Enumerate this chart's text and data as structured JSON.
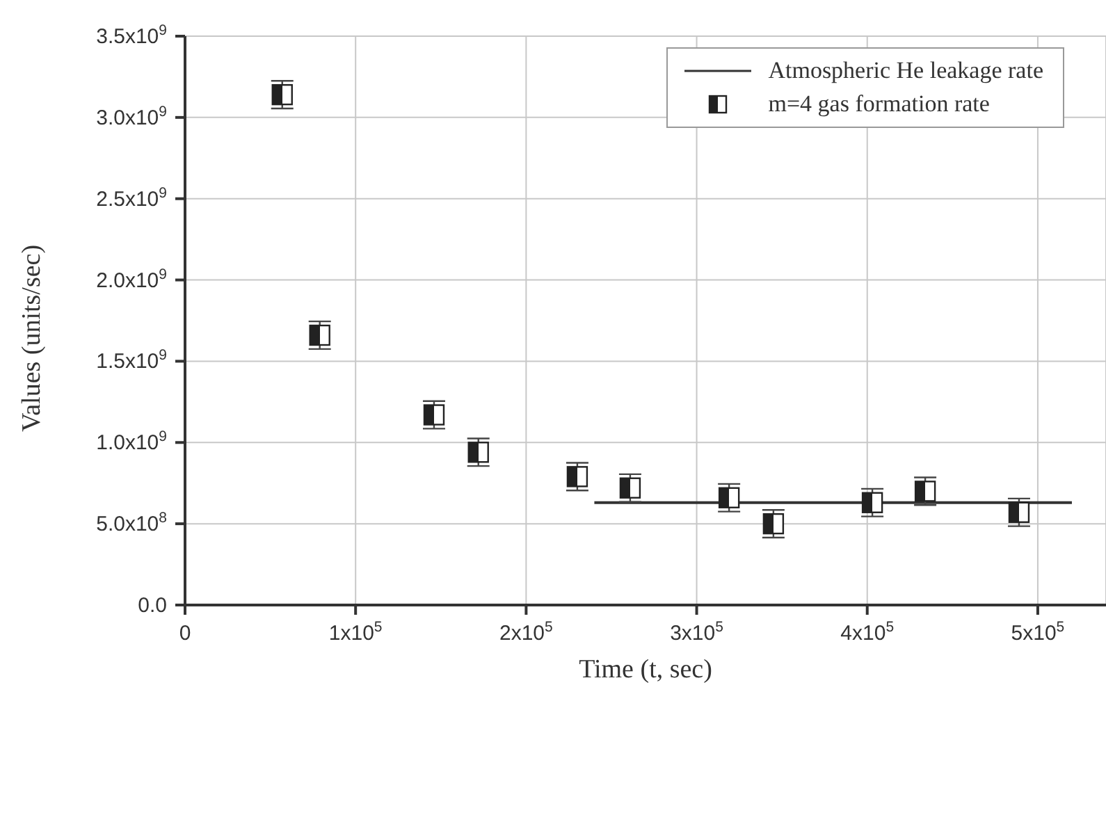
{
  "chart_data": {
    "type": "scatter",
    "xlabel": "Time (t, sec)",
    "ylabel": "Values (units/sec)",
    "xlim": [
      0,
      540000
    ],
    "ylim": [
      0,
      3500000000
    ],
    "xticks": [
      {
        "value": 0,
        "label": "0"
      },
      {
        "value": 100000,
        "label": "1x10$^{5}$"
      },
      {
        "value": 200000,
        "label": "2x10$^{5}$"
      },
      {
        "value": 300000,
        "label": "3x10$^{5}$"
      },
      {
        "value": 400000,
        "label": "4x10$^{5}$"
      },
      {
        "value": 500000,
        "label": "5x10$^{5}$"
      }
    ],
    "yticks": [
      {
        "value": 0,
        "label": "0.0"
      },
      {
        "value": 500000000,
        "label": "5.0x10$^{8}$"
      },
      {
        "value": 1000000000,
        "label": "1.0x10$^{9}$"
      },
      {
        "value": 1500000000,
        "label": "1.5x10$^{9}$"
      },
      {
        "value": 2000000000,
        "label": "2.0x10$^{9}$"
      },
      {
        "value": 2500000000,
        "label": "2.5x10$^{9}$"
      },
      {
        "value": 3000000000,
        "label": "3.0x10$^{9}$"
      },
      {
        "value": 3500000000,
        "label": "3.5x10$^{9}$"
      }
    ],
    "grid": true,
    "legend": "top right",
    "series": [
      {
        "name": "Atmospheric He leakage rate",
        "type": "line",
        "color": "#333333",
        "line_style": "solid",
        "marker": "none",
        "x": [
          240000,
          520000
        ],
        "values": [
          630000000,
          630000000
        ]
      },
      {
        "name": "m=4 gas formation rate",
        "color": "#222222",
        "marker": "square",
        "x": [
          57000,
          79000,
          146000,
          172000,
          230000,
          261000,
          319000,
          345000,
          403000,
          434000,
          489000
        ],
        "values": [
          3140000000,
          1660000000,
          1170000000,
          940000000,
          790000000,
          720000000,
          660000000,
          500000000,
          630000000,
          700000000,
          570000000
        ],
        "errors": [
          85000000,
          85000000,
          85000000,
          85000000,
          85000000,
          85000000,
          85000000,
          85000000,
          85000000,
          85000000,
          85000000
        ]
      }
    ]
  }
}
